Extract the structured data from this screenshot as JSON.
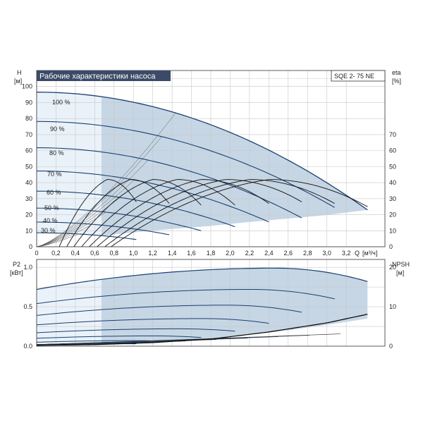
{
  "chart_data": [
    {
      "type": "line",
      "title": "Рабочие характеристики насоса",
      "model": "SQE 2- 75 NE",
      "ylabel": "H",
      "yunit": "[м]",
      "y2label": "eta",
      "y2unit": "[%]",
      "xlabel": "Q",
      "xunit": "[м³/ч]",
      "xlim": [
        0,
        3.6
      ],
      "ylim": [
        0,
        110
      ],
      "y2lim": [
        0,
        110
      ],
      "grid": true,
      "x_ticks": [
        0,
        0.2,
        0.4,
        0.6,
        0.8,
        1.0,
        1.2,
        1.4,
        1.6,
        1.8,
        2.0,
        2.2,
        2.4,
        2.6,
        2.8,
        3.0,
        3.2
      ],
      "x_tick_labels": [
        "0",
        "0,2",
        "0,4",
        "0,6",
        "0,8",
        "1,0",
        "1,2",
        "1,4",
        "1,6",
        "1,8",
        "2,0",
        "2,2",
        "2,4",
        "2,6",
        "2,8",
        "3,0",
        "3,2"
      ],
      "y_ticks": [
        0,
        10,
        20,
        30,
        40,
        50,
        60,
        70,
        80,
        90,
        100
      ],
      "y2_ticks": [
        0,
        10,
        20,
        30,
        40,
        50,
        60,
        70
      ],
      "operating_area": {
        "q_min": 0.67,
        "upper": [
          [
            0.67,
            92.5
          ],
          [
            1.2,
            87
          ],
          [
            1.6,
            81.2
          ],
          [
            2.0,
            73.7
          ],
          [
            2.4,
            64.2
          ],
          [
            2.8,
            52.6
          ],
          [
            3.2,
            38.7
          ],
          [
            3.4,
            31
          ],
          [
            3.42,
            23
          ]
        ],
        "lower": [
          [
            0.67,
            6.8
          ],
          [
            1.0,
            8.9
          ],
          [
            1.4,
            11.1
          ],
          [
            1.8,
            13
          ],
          [
            2.2,
            15.5
          ],
          [
            2.6,
            17.6
          ],
          [
            3.0,
            19.8
          ],
          [
            3.42,
            23
          ]
        ]
      },
      "series": [
        {
          "name": "100 %",
          "qmax": 3.42,
          "h0": 96.5,
          "hend": 23
        },
        {
          "name": "90 %",
          "qmax": 3.08,
          "h0": 78.2,
          "hend": 24.5
        },
        {
          "name": "80 %",
          "qmax": 2.74,
          "h0": 61.8,
          "hend": 18
        },
        {
          "name": "70 %",
          "qmax": 2.4,
          "h0": 47.3,
          "hend": 15.5
        },
        {
          "name": "60 %",
          "qmax": 2.05,
          "h0": 34.7,
          "hend": 12.5
        },
        {
          "name": "50 %",
          "qmax": 1.7,
          "h0": 24.1,
          "hend": 10
        },
        {
          "name": "40 %",
          "qmax": 1.37,
          "h0": 15.4,
          "hend": 7.5
        },
        {
          "name": "30 %",
          "qmax": 1.03,
          "h0": 8.7,
          "hend": 4.5
        }
      ],
      "eta_curves": [
        {
          "qmax": 3.42,
          "peak_q": 2.4,
          "peak_eta": 42,
          "end_eta": 25
        },
        {
          "qmax": 3.08,
          "peak_q": 2.2,
          "peak_eta": 42,
          "end_eta": 27
        },
        {
          "qmax": 2.74,
          "peak_q": 1.95,
          "peak_eta": 42,
          "end_eta": 28
        },
        {
          "qmax": 2.4,
          "peak_q": 1.7,
          "peak_eta": 42,
          "end_eta": 27
        },
        {
          "qmax": 2.05,
          "peak_q": 1.45,
          "peak_eta": 42,
          "end_eta": 26
        },
        {
          "qmax": 1.7,
          "peak_q": 1.2,
          "peak_eta": 42,
          "end_eta": 26
        },
        {
          "qmax": 1.37,
          "peak_q": 0.97,
          "peak_eta": 42,
          "end_eta": 27
        },
        {
          "qmax": 1.03,
          "peak_q": 0.73,
          "peak_eta": 42,
          "end_eta": 28
        }
      ]
    },
    {
      "type": "line",
      "ylabel": "P2",
      "yunit": "[кВт]",
      "y2label": "NPSH",
      "y2unit": "[м]",
      "xlim": [
        0,
        3.6
      ],
      "ylim": [
        0,
        1.1
      ],
      "y2lim": [
        0,
        22
      ],
      "grid": true,
      "y_ticks": [
        0,
        0.5,
        1.0
      ],
      "y_tick_labels": [
        "0.0",
        "0.5",
        "1.0"
      ],
      "y2_ticks": [
        0,
        10,
        20
      ],
      "power_area": {
        "q_min": 0.67,
        "upper": [
          [
            0.67,
            0.87
          ],
          [
            1.2,
            0.93
          ],
          [
            1.8,
            0.98
          ],
          [
            2.2,
            0.99
          ],
          [
            2.6,
            0.97
          ],
          [
            3.0,
            0.92
          ],
          [
            3.42,
            0.82
          ]
        ]
      },
      "power_curves": [
        {
          "qmax": 3.42,
          "p0": 0.72,
          "peak": 0.99,
          "pend": 0.82
        },
        {
          "qmax": 3.08,
          "p0": 0.54,
          "peak": 0.72,
          "pend": 0.6
        },
        {
          "qmax": 2.74,
          "p0": 0.39,
          "peak": 0.52,
          "pend": 0.43
        },
        {
          "qmax": 2.4,
          "p0": 0.27,
          "peak": 0.35,
          "pend": 0.29
        },
        {
          "qmax": 2.05,
          "p0": 0.17,
          "peak": 0.22,
          "pend": 0.19
        },
        {
          "qmax": 1.7,
          "p0": 0.1,
          "peak": 0.13,
          "pend": 0.11
        },
        {
          "qmax": 1.37,
          "p0": 0.05,
          "peak": 0.07,
          "pend": 0.06
        },
        {
          "qmax": 1.03,
          "p0": 0.02,
          "peak": 0.03,
          "pend": 0.03
        }
      ],
      "npsh_curve": [
        [
          0,
          0.2
        ],
        [
          0.6,
          0.4
        ],
        [
          1.2,
          0.9
        ],
        [
          1.8,
          1.8
        ],
        [
          2.4,
          3.6
        ],
        [
          3.0,
          5.9
        ],
        [
          3.42,
          8.1
        ]
      ]
    }
  ],
  "colors": {
    "title_bg": "#3b4a66",
    "curve": "#1a3f72",
    "area": "#c6d6e4",
    "area_light": "#eaf2f9",
    "eta": "#111111",
    "npsh": "#000000"
  }
}
